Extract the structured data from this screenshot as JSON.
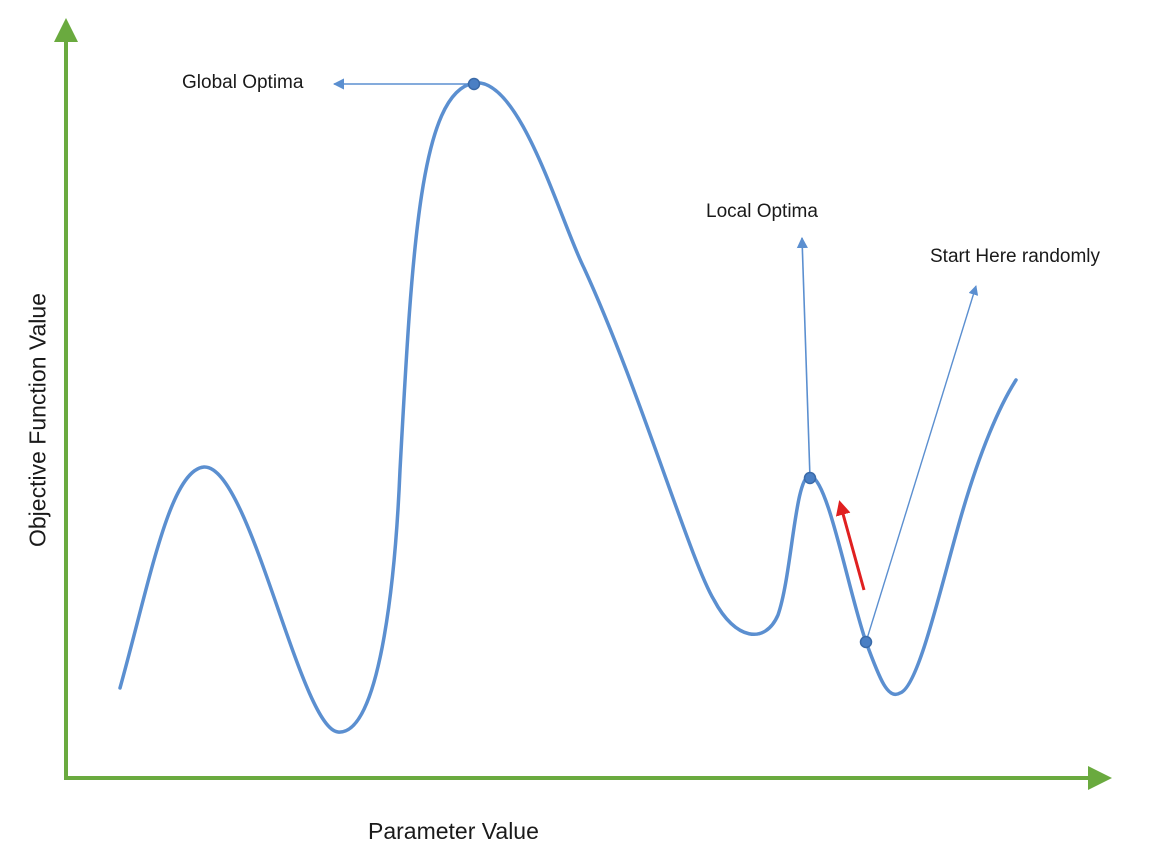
{
  "axes": {
    "x_label": "Parameter Value",
    "y_label": "Objective Function Value",
    "axis_color": "#6aaa3f"
  },
  "curve": {
    "color": "#5b8fd0",
    "accent_dot_color": "#4a7fc4"
  },
  "annotations": {
    "global_optima": "Global Optima",
    "local_optima": "Local Optima",
    "start_here": "Start Here randomly",
    "arrow_color": "#5b8fd0",
    "climb_arrow_color": "#e02020"
  }
}
